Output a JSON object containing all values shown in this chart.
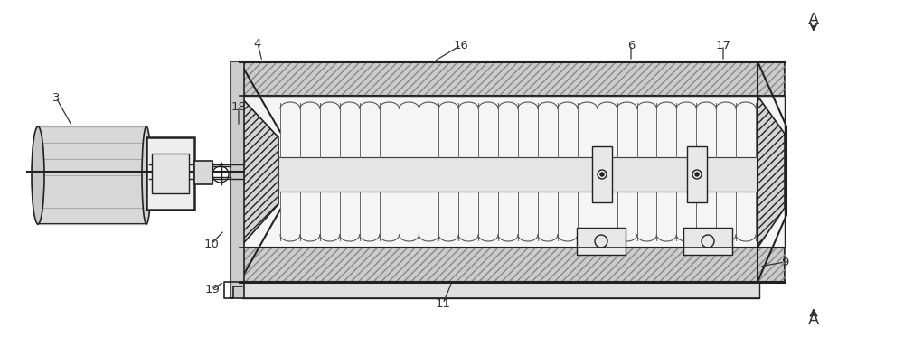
{
  "fig_width": 10.0,
  "fig_height": 3.73,
  "dpi": 100,
  "bg_color": "#ffffff",
  "lc": "#444444",
  "dc": "#222222",
  "gray_light": "#e8e8e8",
  "gray_mid": "#cccccc",
  "gray_dark": "#aaaaaa",
  "hatch_fill": "#bbbbbb"
}
